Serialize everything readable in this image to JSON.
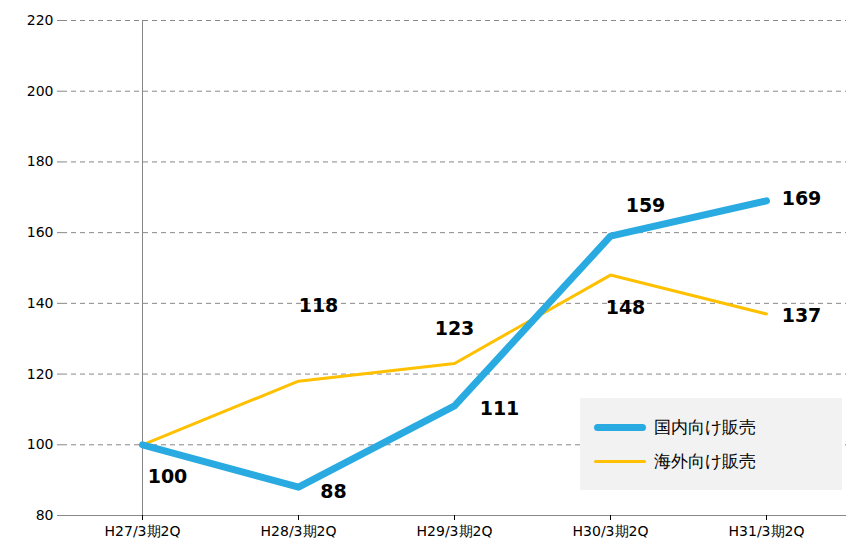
{
  "chart_data": {
    "type": "line",
    "categories": [
      "H27/3期2Q",
      "H28/3期2Q",
      "H29/3期2Q",
      "H30/3期2Q",
      "H31/3期2Q"
    ],
    "series": [
      {
        "name": "国内向け販売",
        "color": "#29abe2",
        "values": [
          100,
          88,
          111,
          159,
          169
        ]
      },
      {
        "name": "海外向け販売",
        "color": "#ffc000",
        "values": [
          100,
          118,
          123,
          148,
          137
        ]
      }
    ],
    "ylim": [
      80,
      220
    ],
    "yticks": [
      80,
      100,
      120,
      140,
      160,
      180,
      200,
      220
    ],
    "grid": true,
    "data_labels": true,
    "legend": "lower right"
  }
}
